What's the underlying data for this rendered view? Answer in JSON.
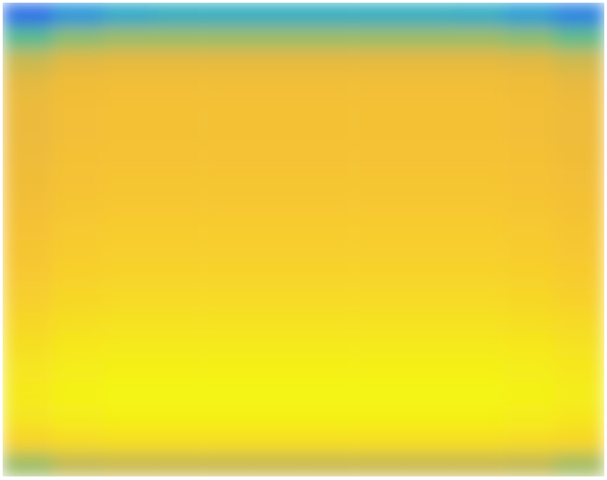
{
  "chart_data": {
    "type": "heatmap",
    "tick_labels": false,
    "cells": [
      [
        0.3,
        0.38,
        0.43,
        0.45,
        0.45,
        0.45,
        0.45,
        0.45,
        0.45,
        0.44,
        0.4,
        0.34
      ],
      [
        0.54,
        0.6,
        0.62,
        0.62,
        0.62,
        0.62,
        0.62,
        0.62,
        0.62,
        0.62,
        0.6,
        0.55
      ],
      [
        0.68,
        0.73,
        0.74,
        0.74,
        0.74,
        0.74,
        0.74,
        0.74,
        0.74,
        0.74,
        0.73,
        0.69
      ],
      [
        0.74,
        0.78,
        0.79,
        0.79,
        0.79,
        0.79,
        0.79,
        0.79,
        0.79,
        0.79,
        0.78,
        0.75
      ],
      [
        0.76,
        0.79,
        0.8,
        0.8,
        0.8,
        0.8,
        0.8,
        0.8,
        0.8,
        0.8,
        0.79,
        0.77
      ],
      [
        0.76,
        0.79,
        0.8,
        0.8,
        0.8,
        0.8,
        0.8,
        0.8,
        0.8,
        0.8,
        0.79,
        0.77
      ],
      [
        0.77,
        0.8,
        0.81,
        0.81,
        0.81,
        0.81,
        0.81,
        0.81,
        0.81,
        0.81,
        0.8,
        0.78
      ],
      [
        0.78,
        0.81,
        0.82,
        0.82,
        0.82,
        0.82,
        0.82,
        0.82,
        0.82,
        0.82,
        0.81,
        0.79
      ],
      [
        0.79,
        0.82,
        0.83,
        0.83,
        0.83,
        0.83,
        0.83,
        0.83,
        0.83,
        0.83,
        0.82,
        0.8
      ],
      [
        0.81,
        0.84,
        0.85,
        0.85,
        0.85,
        0.85,
        0.85,
        0.85,
        0.85,
        0.85,
        0.84,
        0.82
      ],
      [
        0.82,
        0.85,
        0.86,
        0.86,
        0.86,
        0.86,
        0.86,
        0.86,
        0.86,
        0.86,
        0.85,
        0.83
      ],
      [
        0.84,
        0.87,
        0.88,
        0.88,
        0.88,
        0.88,
        0.88,
        0.88,
        0.88,
        0.88,
        0.87,
        0.85
      ],
      [
        0.86,
        0.89,
        0.9,
        0.9,
        0.9,
        0.9,
        0.9,
        0.9,
        0.9,
        0.9,
        0.89,
        0.87
      ],
      [
        0.89,
        0.92,
        0.93,
        0.93,
        0.93,
        0.93,
        0.93,
        0.93,
        0.93,
        0.93,
        0.92,
        0.9
      ],
      [
        0.92,
        0.95,
        0.96,
        0.96,
        0.96,
        0.96,
        0.96,
        0.96,
        0.96,
        0.96,
        0.95,
        0.93
      ],
      [
        0.94,
        0.97,
        0.98,
        0.98,
        0.98,
        0.98,
        0.98,
        0.98,
        0.98,
        0.98,
        0.97,
        0.95
      ],
      [
        0.96,
        0.99,
        1.0,
        1.0,
        1.0,
        1.0,
        1.0,
        1.0,
        1.0,
        1.0,
        0.99,
        0.97
      ],
      [
        0.94,
        0.97,
        0.98,
        0.98,
        0.98,
        0.98,
        0.98,
        0.98,
        0.98,
        0.98,
        0.97,
        0.95
      ],
      [
        0.88,
        0.91,
        0.92,
        0.92,
        0.92,
        0.92,
        0.92,
        0.92,
        0.92,
        0.92,
        0.91,
        0.89
      ],
      [
        0.62,
        0.67,
        0.68,
        0.68,
        0.68,
        0.68,
        0.68,
        0.68,
        0.68,
        0.68,
        0.67,
        0.63
      ]
    ]
  }
}
